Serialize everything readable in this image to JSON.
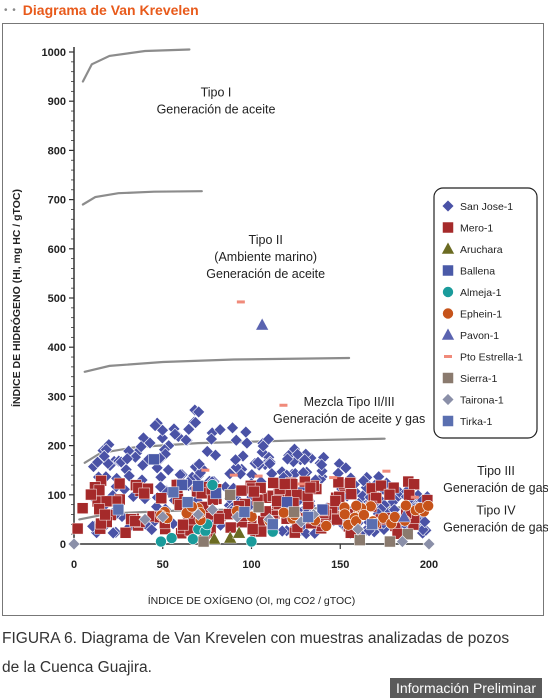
{
  "header": {
    "dots": "• •",
    "title": "Diagrama de Van Krevelen"
  },
  "caption": {
    "line1": "FIGURA 6. Diagrama de Van Krevelen con muestras analizadas de pozos",
    "line2": "de la Cuenca Guajira."
  },
  "badge": "Información Preliminar",
  "chart_data": {
    "type": "scatter",
    "xlabel": "ÍNDICE DE OXÍGENO (OI, mg CO2 / gTOC)",
    "ylabel": "ÍNDICE DE HIDRÓGENO (HI, mg HC / gTOC)",
    "xlim": [
      0,
      200
    ],
    "ylim": [
      0,
      1000
    ],
    "xticks": [
      "0",
      "50",
      "100",
      "150",
      "200"
    ],
    "yticks": [
      "0",
      "100",
      "200",
      "300",
      "400",
      "500",
      "600",
      "700",
      "800",
      "900",
      "1000"
    ],
    "grid": false,
    "legend_position": "right",
    "zone_labels": [
      {
        "lines": [
          "Tipo I",
          "Generación de aceite"
        ],
        "x": 80,
        "y": 910
      },
      {
        "lines": [
          "Tipo II",
          "(Ambiente marino)",
          "Generación de aceite"
        ],
        "x": 108,
        "y": 610
      },
      {
        "lines": [
          "Mezcla Tipo II/III",
          "Generación de aceite y gas"
        ],
        "x": 155,
        "y": 280
      },
      {
        "lines": [
          "Tipo III",
          "Generación de gas"
        ],
        "x": 207,
        "y": 140
      },
      {
        "lines": [
          "Tipo IV",
          "Generación de gas"
        ],
        "x": 207,
        "y": 60
      }
    ],
    "curves": [
      {
        "name": "Tipo I",
        "points": [
          [
            5,
            940
          ],
          [
            10,
            975
          ],
          [
            20,
            992
          ],
          [
            40,
            1002
          ],
          [
            65,
            1005
          ]
        ]
      },
      {
        "name": "Tipo II",
        "points": [
          [
            5,
            690
          ],
          [
            12,
            705
          ],
          [
            25,
            713
          ],
          [
            45,
            716
          ],
          [
            72,
            717
          ]
        ]
      },
      {
        "name": "Tipo II/III",
        "points": [
          [
            6,
            350
          ],
          [
            20,
            362
          ],
          [
            50,
            370
          ],
          [
            90,
            375
          ],
          [
            155,
            378
          ]
        ]
      },
      {
        "name": "Tipo III",
        "points": [
          [
            6,
            165
          ],
          [
            15,
            185
          ],
          [
            35,
            197
          ],
          [
            70,
            205
          ],
          [
            120,
            210
          ],
          [
            175,
            214
          ]
        ]
      },
      {
        "name": "Tipo IV",
        "points": [
          [
            3,
            50
          ],
          [
            20,
            62
          ],
          [
            60,
            68
          ],
          [
            120,
            72
          ],
          [
            200,
            75
          ]
        ]
      }
    ],
    "series": [
      {
        "name": "San Jose-1",
        "marker": "diamond",
        "color": "#4a52a6",
        "n": 330,
        "cx": [
          10,
          200
        ],
        "cy": [
          0,
          280
        ],
        "seed": 11
      },
      {
        "name": "Mero-1",
        "marker": "square",
        "color": "#a52a2a",
        "n": 160,
        "cx": [
          0,
          200
        ],
        "cy": [
          20,
          130
        ],
        "seed": 23
      },
      {
        "name": "Aruchara",
        "marker": "triangle",
        "color": "#6b6b22",
        "points": [
          [
            79,
            10
          ],
          [
            88,
            12
          ],
          [
            93,
            22
          ]
        ]
      },
      {
        "name": "Ballena",
        "marker": "square",
        "color": "#4a5aa8",
        "points": [
          [
            45,
            172
          ],
          [
            61,
            120
          ],
          [
            70,
            118
          ],
          [
            80,
            103
          ],
          [
            120,
            85
          ],
          [
            140,
            70
          ],
          [
            155,
            48
          ]
        ]
      },
      {
        "name": "Almeja-1",
        "marker": "circle",
        "color": "#1a9b9b",
        "points": [
          [
            49,
            5
          ],
          [
            55,
            12
          ],
          [
            67,
            10
          ],
          [
            70,
            30
          ],
          [
            74,
            26
          ],
          [
            75,
            40
          ],
          [
            78,
            120
          ],
          [
            100,
            5
          ],
          [
            112,
            25
          ]
        ]
      },
      {
        "name": "Ephein-1",
        "marker": "circle",
        "color": "#c6531a",
        "n": 40,
        "cx": [
          48,
          200
        ],
        "cy": [
          35,
          80
        ],
        "seed": 37
      },
      {
        "name": "Pavon-1",
        "marker": "triangle",
        "color": "#5a63b0",
        "points": [
          [
            106,
            445
          ],
          [
            186,
            55
          ]
        ]
      },
      {
        "name": "Pto Estrella-1",
        "marker": "dash",
        "color": "#f08a7a",
        "points": [
          [
            94,
            492
          ],
          [
            118,
            282
          ],
          [
            74,
            150
          ],
          [
            90,
            140
          ],
          [
            104,
            138
          ],
          [
            128,
            122
          ],
          [
            146,
            135
          ],
          [
            176,
            148
          ],
          [
            192,
            95
          ]
        ]
      },
      {
        "name": "Sierra-1",
        "marker": "square",
        "color": "#8a7a6e",
        "points": [
          [
            73,
            5
          ],
          [
            88,
            100
          ],
          [
            104,
            75
          ],
          [
            124,
            65
          ],
          [
            161,
            8
          ],
          [
            178,
            5
          ],
          [
            188,
            20
          ]
        ]
      },
      {
        "name": "Tairona-1",
        "marker": "diamond",
        "color": "#8a8fa8",
        "points": [
          [
            0,
            0
          ],
          [
            40,
            50
          ],
          [
            50,
            55
          ],
          [
            70,
            60
          ],
          [
            78,
            70
          ],
          [
            92,
            55
          ],
          [
            110,
            50
          ],
          [
            128,
            45
          ],
          [
            135,
            60
          ],
          [
            160,
            30
          ],
          [
            185,
            5
          ],
          [
            200,
            0
          ]
        ]
      },
      {
        "name": "Tirka-1",
        "marker": "square",
        "color": "#5a6fb0",
        "points": [
          [
            25,
            70
          ],
          [
            56,
            105
          ],
          [
            64,
            85
          ],
          [
            96,
            65
          ],
          [
            112,
            40
          ],
          [
            132,
            55
          ],
          [
            168,
            40
          ]
        ]
      }
    ]
  }
}
